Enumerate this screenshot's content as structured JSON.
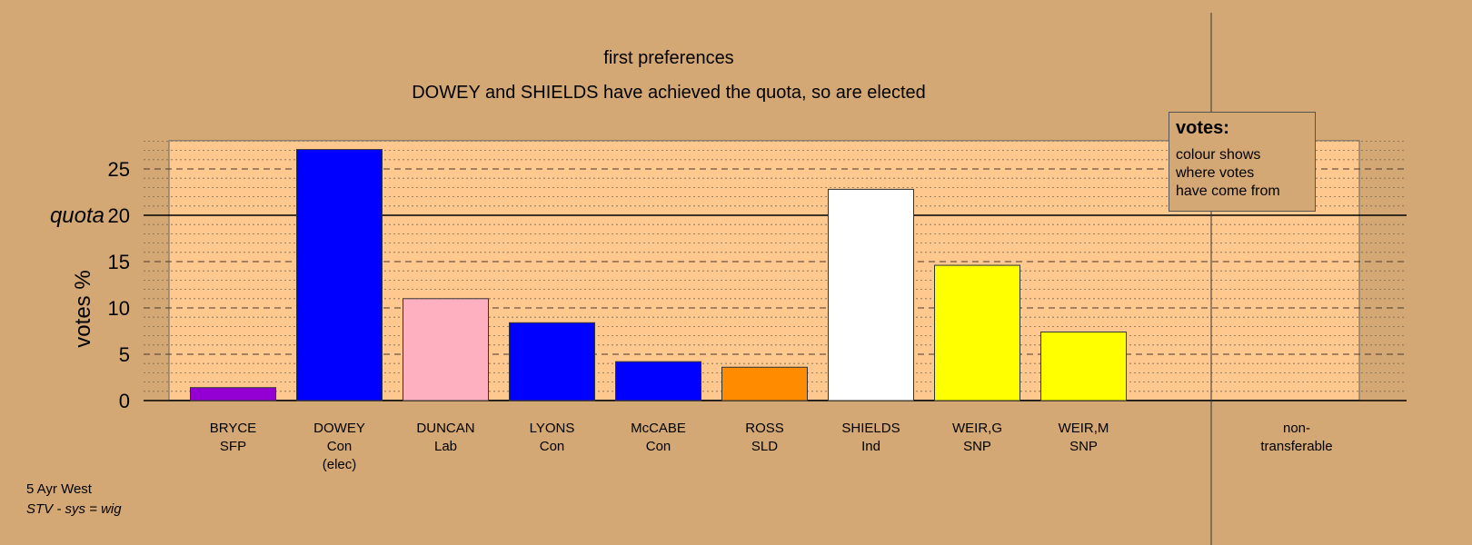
{
  "chart_data": {
    "type": "bar",
    "title": "first preferences",
    "subtitle": "DOWEY and SHIELDS have achieved the quota, so are elected",
    "ylabel": "votes %",
    "ylim": [
      0,
      28
    ],
    "yticks": [
      0,
      5,
      10,
      15,
      20,
      25
    ],
    "quota": 20,
    "quota_label": "quota",
    "grid": true,
    "categories": [
      {
        "name": "BRYCE",
        "party": "SFP",
        "note": "",
        "value": 1.4,
        "color": "#9400D3"
      },
      {
        "name": "DOWEY",
        "party": "Con",
        "note": "(elec)",
        "value": 27.1,
        "color": "#0000FF"
      },
      {
        "name": "DUNCAN",
        "party": "Lab",
        "note": "",
        "value": 11.0,
        "color": "#FFB0C0"
      },
      {
        "name": "LYONS",
        "party": "Con",
        "note": "",
        "value": 8.4,
        "color": "#0000FF"
      },
      {
        "name": "McCABE",
        "party": "Con",
        "note": "",
        "value": 4.2,
        "color": "#0000FF"
      },
      {
        "name": "ROSS",
        "party": "SLD",
        "note": "",
        "value": 3.6,
        "color": "#FF8C00"
      },
      {
        "name": "SHIELDS",
        "party": "Ind",
        "note": "",
        "value": 22.8,
        "color": "#FFFFFF"
      },
      {
        "name": "WEIR,G",
        "party": "SNP",
        "note": "",
        "value": 14.6,
        "color": "#FFFF00"
      },
      {
        "name": "WEIR,M",
        "party": "SNP",
        "note": "",
        "value": 7.4,
        "color": "#FFFF00"
      }
    ],
    "nontransferable_label": [
      "non-",
      "transferable"
    ]
  },
  "legend": {
    "title": "votes:",
    "text": "colour shows\nwhere votes\nhave come from"
  },
  "footer": {
    "line1": "5 Ayr West",
    "line2": "STV - sys = wig"
  }
}
